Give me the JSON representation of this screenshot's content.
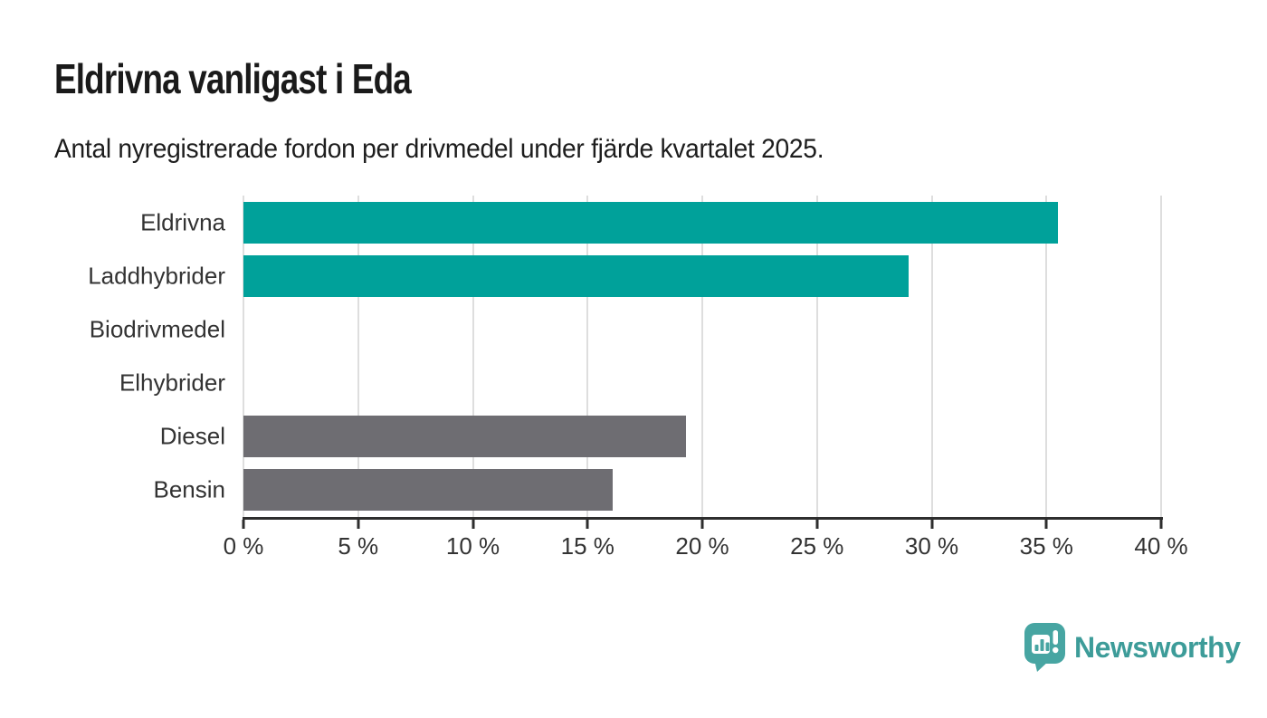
{
  "header": {
    "title": "Eldrivna vanligast i Eda",
    "subtitle": "Antal nyregistrerade fordon per drivmedel under fjärde kvartalet 2025."
  },
  "chart_data": {
    "type": "bar",
    "orientation": "horizontal",
    "title": "Eldrivna vanligast i Eda",
    "subtitle": "Antal nyregistrerade fordon per drivmedel under fjärde kvartalet 2025.",
    "categories": [
      "Eldrivna",
      "Laddhybrider",
      "Biodrivmedel",
      "Elhybrider",
      "Diesel",
      "Bensin"
    ],
    "values": [
      35.5,
      29,
      0,
      0,
      19.3,
      16.1
    ],
    "unit": "%",
    "point_colors": [
      "#00A19A",
      "#00A19A",
      "#00A19A",
      "#00A19A",
      "#6E6D72",
      "#6E6D72"
    ],
    "xlabel": "",
    "ylabel": "",
    "xlim": [
      0,
      40
    ],
    "x_ticks": [
      0,
      5,
      10,
      15,
      20,
      25,
      30,
      35,
      40
    ],
    "x_tick_labels": [
      "0 %",
      "5 %",
      "10 %",
      "15 %",
      "20 %",
      "25 %",
      "30 %",
      "35 %",
      "40 %"
    ],
    "grid": "vertical",
    "legend": "none",
    "colors": {
      "accent_teal": "#00A19A",
      "muted_gray": "#6E6D72",
      "gridline": "#DEDEDE",
      "axis": "#2E2E2E",
      "tick_text": "#333333"
    }
  },
  "footer": {
    "brand_label": "Newsworthy",
    "brand_color": "#3D9C99",
    "badge_color": "#47A5A2"
  }
}
